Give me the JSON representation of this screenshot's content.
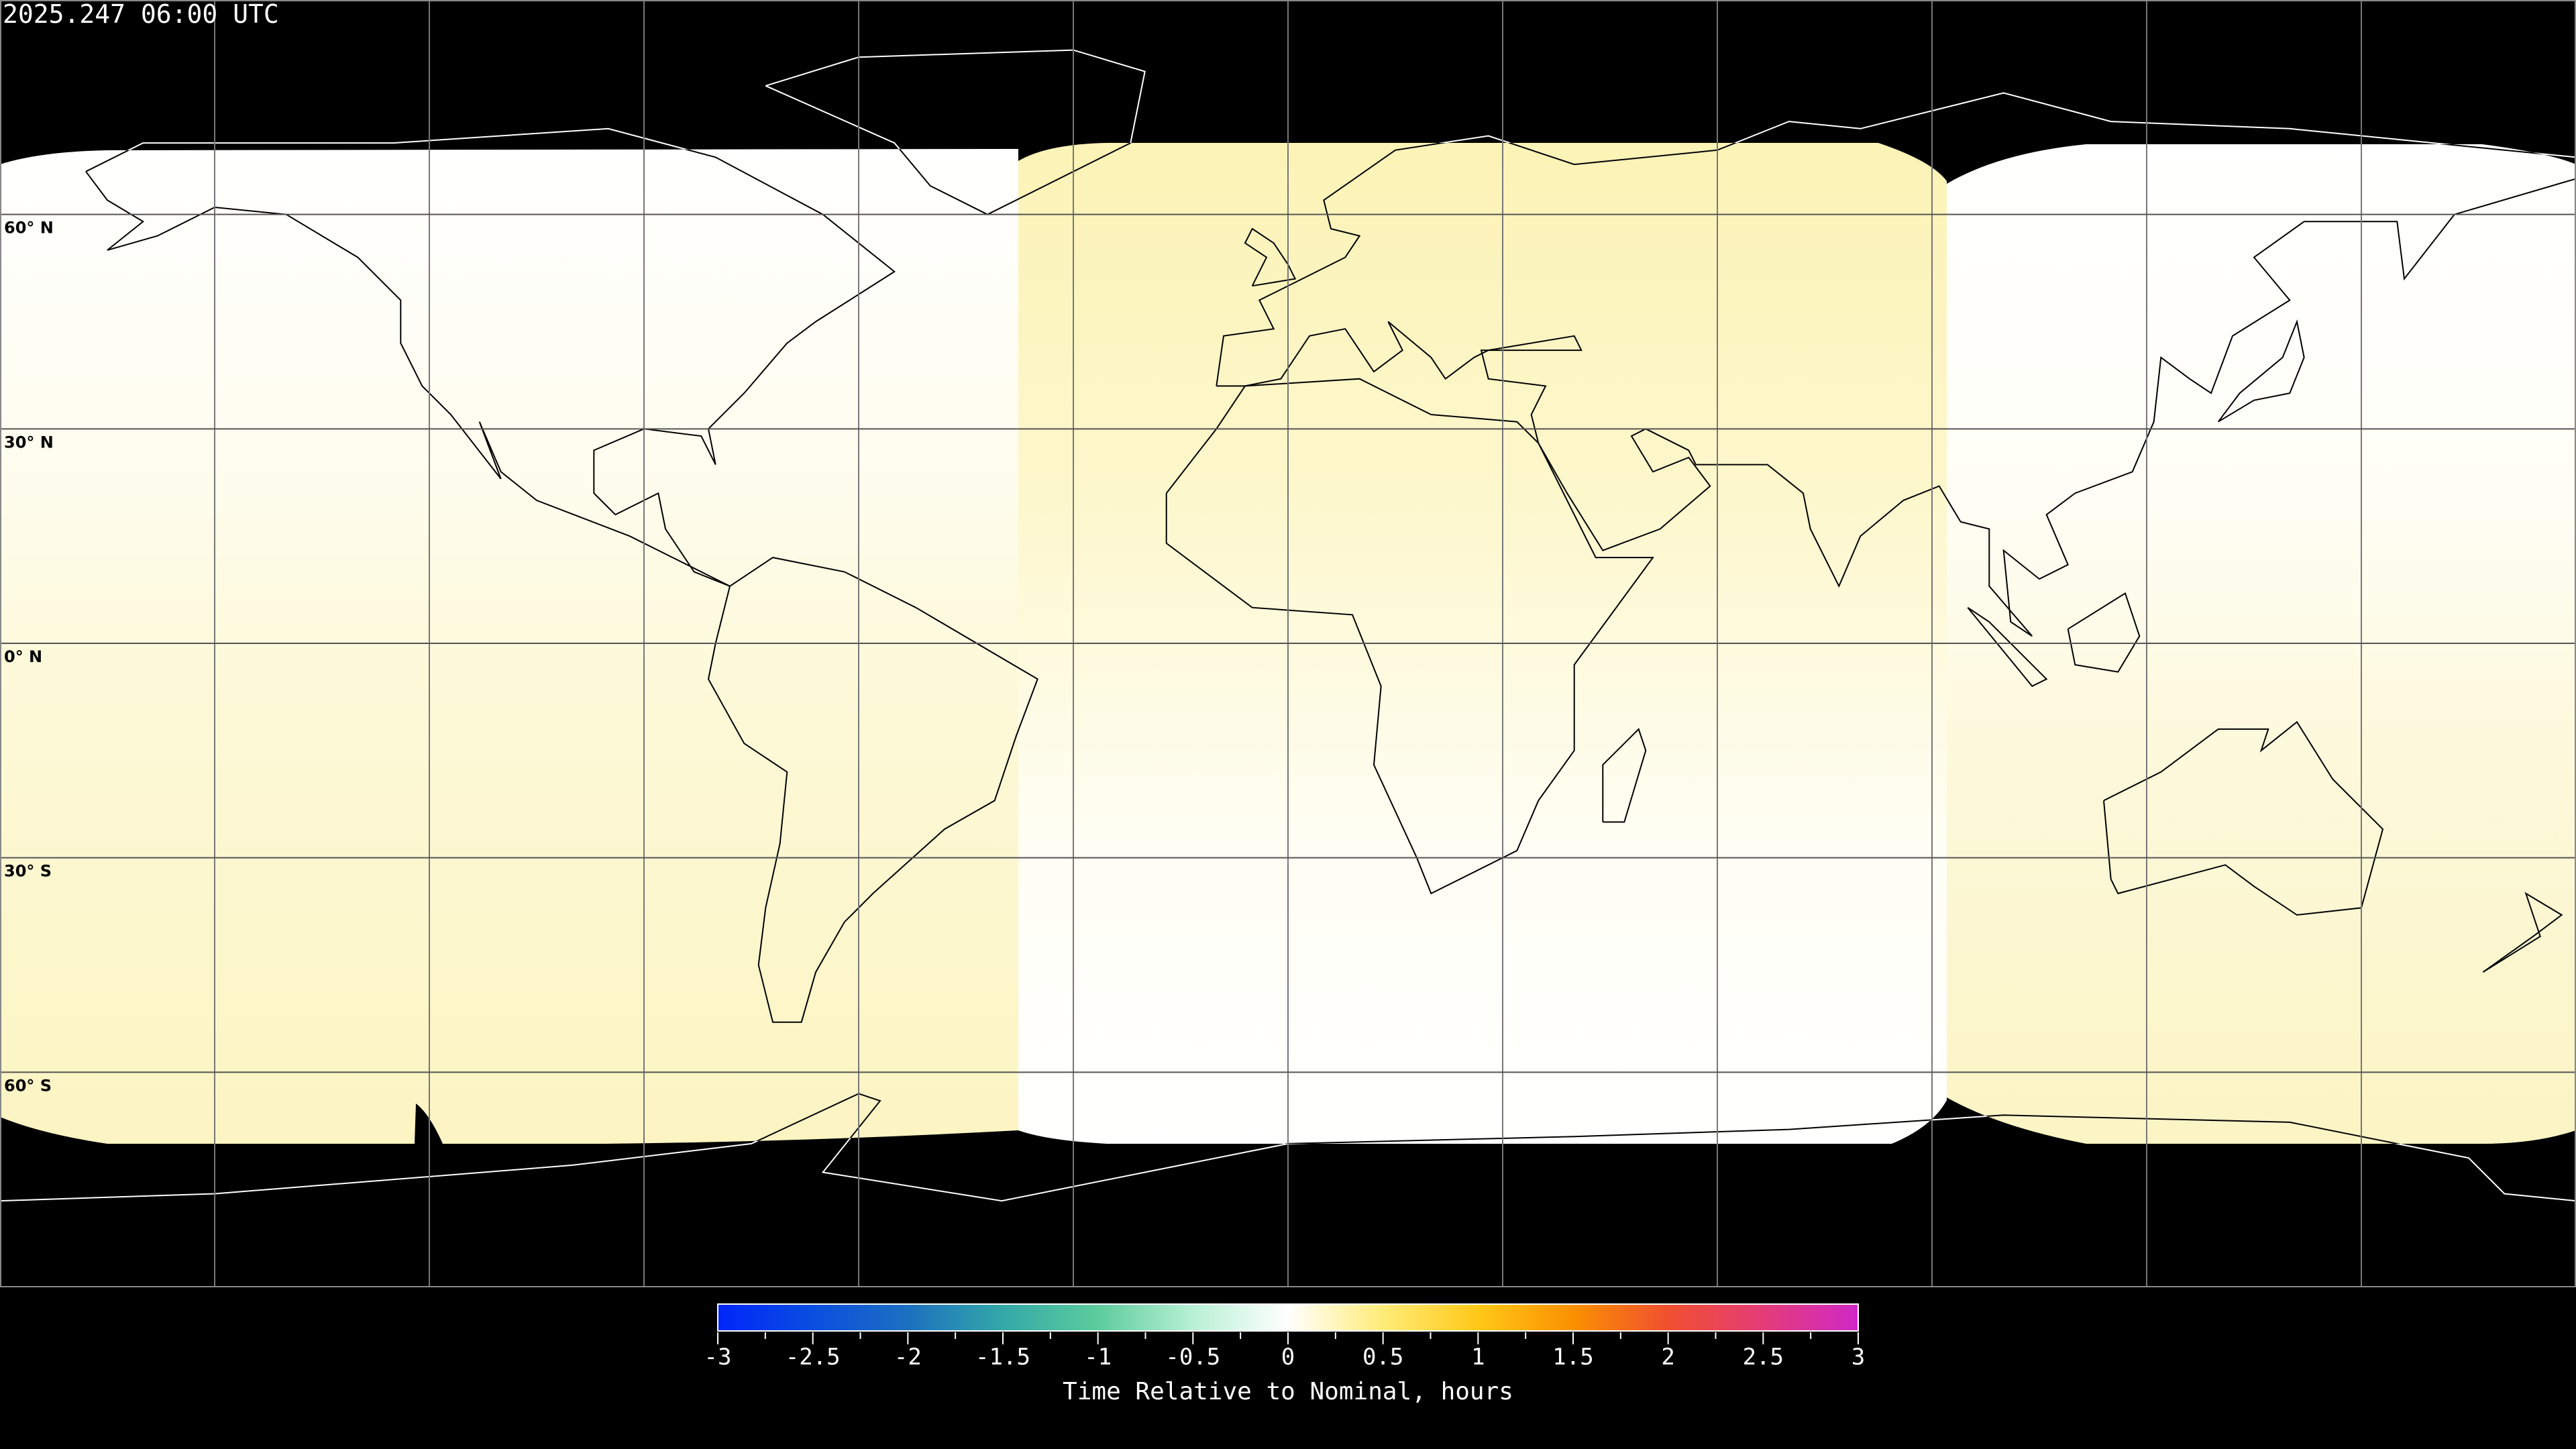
{
  "title": "2025.247 06:00 UTC",
  "map": {
    "projection": "equirectangular",
    "lat_labels": [
      "60° N",
      "30° N",
      "0° N",
      "30° S",
      "60° S"
    ],
    "lat_values": [
      60,
      30,
      0,
      -30,
      -60
    ],
    "lon_grid_values": [
      -150,
      -120,
      -90,
      -60,
      -30,
      0,
      30,
      60,
      90,
      120,
      150
    ]
  },
  "colorbar": {
    "label": "Time Relative to Nominal, hours",
    "min": -3,
    "max": 3,
    "ticks": [
      "-3",
      "-2.5",
      "-2",
      "-1.5",
      "-1",
      "-0.5",
      "0",
      "0.5",
      "1",
      "1.5",
      "2",
      "2.5",
      "3"
    ],
    "colors": {
      "-3": "#0026fa",
      "-2.5": "#0a4ee0",
      "-2": "#1c70c0",
      "-1.5": "#34a8a8",
      "-1": "#5ccc9c",
      "-0.5": "#b8f0d4",
      "0": "#ffffff",
      "0.5": "#ffec78",
      "1": "#ffc818",
      "1.5": "#fa9000",
      "2": "#f05030",
      "2.5": "#e43c78",
      "3": "#d028c8"
    }
  }
}
